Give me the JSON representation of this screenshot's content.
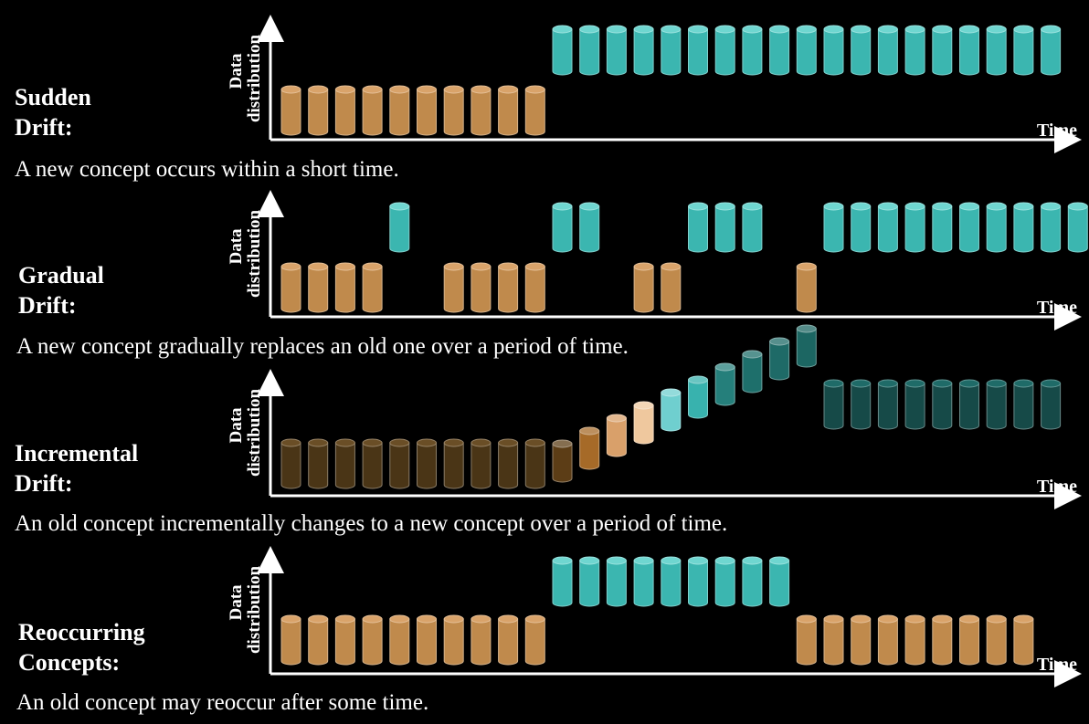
{
  "y_axis_label_line1": "Data",
  "y_axis_label_line2": "distribution",
  "x_axis_label": "Time",
  "colors": {
    "old": "#c08a4c",
    "old_top": "#d9a36a",
    "new": "#3bb6b0",
    "new_top": "#6fd6d0",
    "dark_old": "#6a4a22",
    "dark_new": "#1e5f5c"
  },
  "panels": [
    {
      "id": "sudden",
      "title_line1": "Sudden",
      "title_line2": "Drift:",
      "description": "A new concept occurs within a short time.",
      "sequence": "OOOOOOOOOONNNNNNNNNNNNNNNNNNN"
    },
    {
      "id": "gradual",
      "title_line1": "Gradual",
      "title_line2": "Drift:",
      "description": "A new concept gradually replaces an old one over a period of time.",
      "sequence": "OOOON-OOOONN-OONNN-ONNNNNNNNNNNNN"
    },
    {
      "id": "incremental",
      "title_line1": "Incremental",
      "title_line2": "Drift:",
      "description": "An old concept incrementally changes to a new concept over a period of time.",
      "sequence": "OOOOOOOOOOIIIIIIIIIINNNNNNNNN"
    },
    {
      "id": "reoccurring",
      "title_line1": "Reoccurring",
      "title_line2": "Concepts:",
      "description": "An old concept may reoccur after some time.",
      "sequence": "OOOOOOOOOONNNNNNNNNOOOOOOOOO"
    }
  ]
}
